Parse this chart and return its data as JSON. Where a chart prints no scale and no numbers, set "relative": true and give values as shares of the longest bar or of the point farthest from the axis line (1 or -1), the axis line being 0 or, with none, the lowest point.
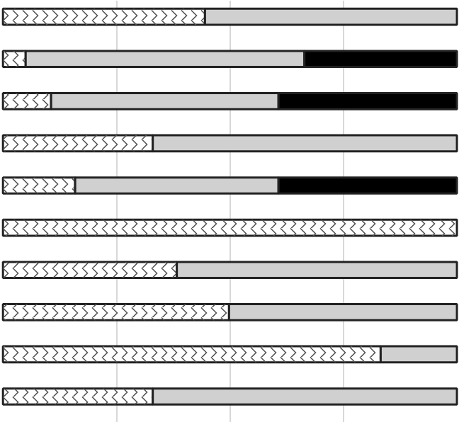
{
  "chart_data": {
    "type": "bar",
    "orientation": "horizontal",
    "stacked": true,
    "relative": true,
    "grid": "x",
    "tick_labels": false,
    "categories": [
      null,
      null,
      null,
      null,
      null,
      null,
      null,
      null,
      null,
      null
    ],
    "series": [
      {
        "color": "#ffffff",
        "values": [
          0.445,
          0.05,
          0.106,
          0.33,
          0.159,
          1.0,
          0.383,
          0.498,
          0.832,
          0.33
        ]
      },
      {
        "color": "#d0d0d0",
        "values": [
          0.555,
          0.614,
          0.501,
          0.67,
          0.448,
          0,
          0.617,
          0.502,
          0.168,
          0.67
        ]
      },
      {
        "color": "#000000",
        "values": [
          0,
          0.336,
          0.393,
          0,
          0.393,
          0,
          0,
          0,
          0,
          0
        ]
      }
    ]
  }
}
